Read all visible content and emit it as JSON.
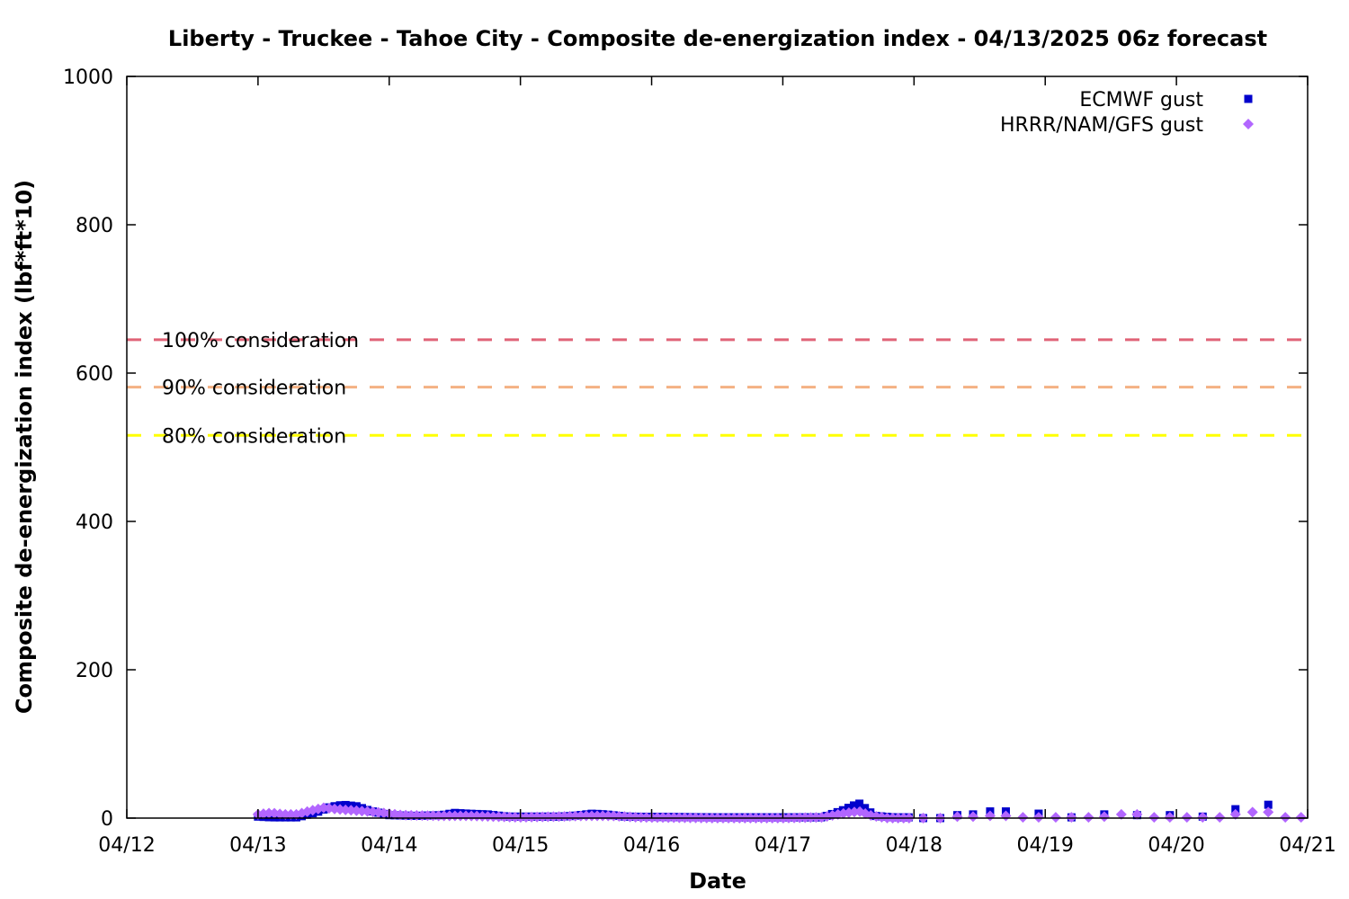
{
  "chart_data": {
    "type": "scatter",
    "title": "Liberty - Truckee - Tahoe City - Composite de-energization index - 04/13/2025 06z forecast",
    "xlabel": "Date",
    "ylabel": "Composite de-energization index (lbf*ft*10)",
    "x_unit": "days",
    "xlim": [
      0,
      9
    ],
    "ylim": [
      0,
      1000
    ],
    "x_ticks": [
      0,
      1,
      2,
      3,
      4,
      5,
      6,
      7,
      8,
      9
    ],
    "x_tick_labels": [
      "04/12",
      "04/13",
      "04/14",
      "04/15",
      "04/16",
      "04/17",
      "04/18",
      "04/19",
      "04/20",
      "04/21"
    ],
    "y_ticks": [
      0,
      200,
      400,
      600,
      800,
      1000
    ],
    "y_tick_labels": [
      "0",
      "200",
      "400",
      "600",
      "800",
      "1000"
    ],
    "grid": false,
    "legend_position": "top-right",
    "thresholds": [
      {
        "label": "100% consideration",
        "value": 645,
        "color": "#e06377"
      },
      {
        "label": "90% consideration",
        "value": 581,
        "color": "#f4b183"
      },
      {
        "label": "80% consideration",
        "value": 516,
        "color": "#ffff00"
      }
    ],
    "series": [
      {
        "name": "ECMWF gust",
        "marker": "square",
        "color": "#0000cc",
        "segments": [
          {
            "x_start": 1.0,
            "x_end": 5.0,
            "step": 0.0417,
            "shape": [
              [
                1.0,
                2
              ],
              [
                1.1,
                1
              ],
              [
                1.3,
                1
              ],
              [
                1.45,
                8
              ],
              [
                1.55,
                15
              ],
              [
                1.65,
                18
              ],
              [
                1.75,
                16
              ],
              [
                1.85,
                10
              ],
              [
                2.0,
                4
              ],
              [
                2.2,
                3
              ],
              [
                2.4,
                4
              ],
              [
                2.5,
                7
              ],
              [
                2.6,
                6
              ],
              [
                2.75,
                5
              ],
              [
                2.9,
                2
              ],
              [
                3.3,
                2
              ],
              [
                3.4,
                3
              ],
              [
                3.55,
                6
              ],
              [
                3.65,
                5
              ],
              [
                3.8,
                2
              ],
              [
                4.5,
                1
              ],
              [
                4.7,
                1
              ],
              [
                5.0,
                1
              ]
            ]
          },
          {
            "x_start": 5.0,
            "x_end": 6.0,
            "step": 0.0417,
            "shape": [
              [
                5.0,
                1
              ],
              [
                5.3,
                1
              ],
              [
                5.45,
                10
              ],
              [
                5.58,
                20
              ],
              [
                5.7,
                3
              ],
              [
                5.85,
                1
              ],
              [
                6.0,
                1
              ]
            ]
          }
        ],
        "points": [
          [
            6.07,
            0
          ],
          [
            6.2,
            0
          ],
          [
            6.33,
            4
          ],
          [
            6.45,
            5
          ],
          [
            6.58,
            9
          ],
          [
            6.7,
            9
          ],
          [
            6.95,
            6
          ],
          [
            7.2,
            1
          ],
          [
            7.45,
            5
          ],
          [
            7.7,
            4
          ],
          [
            7.95,
            4
          ],
          [
            8.2,
            2
          ],
          [
            8.45,
            12
          ],
          [
            8.7,
            18
          ]
        ]
      },
      {
        "name": "HRRR/NAM/GFS gust",
        "marker": "diamond",
        "color": "#b266ff",
        "segments": [
          {
            "x_start": 1.0,
            "x_end": 6.0,
            "step": 0.0417,
            "shape": [
              [
                1.0,
                5
              ],
              [
                1.1,
                7
              ],
              [
                1.2,
                5
              ],
              [
                1.3,
                5
              ],
              [
                1.4,
                10
              ],
              [
                1.5,
                14
              ],
              [
                1.6,
                12
              ],
              [
                1.75,
                10
              ],
              [
                1.9,
                8
              ],
              [
                2.1,
                4
              ],
              [
                2.4,
                3
              ],
              [
                2.6,
                3
              ],
              [
                2.8,
                2
              ],
              [
                3.0,
                1
              ],
              [
                3.5,
                3
              ],
              [
                3.7,
                3
              ],
              [
                3.9,
                1
              ],
              [
                4.5,
                0
              ],
              [
                5.0,
                0
              ],
              [
                5.3,
                1
              ],
              [
                5.45,
                6
              ],
              [
                5.58,
                9
              ],
              [
                5.68,
                3
              ],
              [
                5.8,
                0
              ],
              [
                6.0,
                0
              ]
            ]
          }
        ],
        "points": [
          [
            6.07,
            0
          ],
          [
            6.2,
            0
          ],
          [
            6.33,
            2
          ],
          [
            6.45,
            2
          ],
          [
            6.58,
            3
          ],
          [
            6.7,
            3
          ],
          [
            6.83,
            1
          ],
          [
            6.95,
            1
          ],
          [
            7.08,
            1
          ],
          [
            7.2,
            1
          ],
          [
            7.33,
            1
          ],
          [
            7.45,
            2
          ],
          [
            7.58,
            5
          ],
          [
            7.7,
            5
          ],
          [
            7.83,
            1
          ],
          [
            7.95,
            1
          ],
          [
            8.08,
            1
          ],
          [
            8.2,
            1
          ],
          [
            8.33,
            1
          ],
          [
            8.45,
            5
          ],
          [
            8.58,
            8
          ],
          [
            8.7,
            8
          ],
          [
            8.83,
            1
          ],
          [
            8.95,
            1
          ]
        ]
      }
    ]
  }
}
